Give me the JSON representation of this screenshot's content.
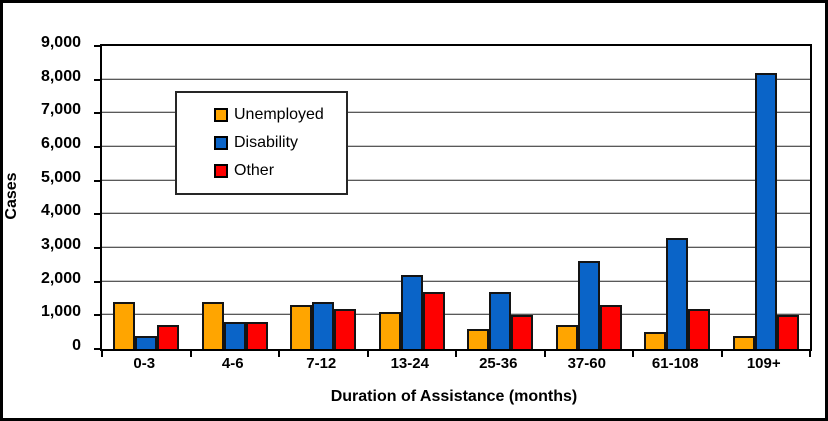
{
  "chart_data": {
    "type": "bar",
    "title": "",
    "xlabel": "Duration of Assistance (months)",
    "ylabel": "Cases",
    "categories": [
      "0-3",
      "4-6",
      "7-12",
      "13-24",
      "25-36",
      "37-60",
      "61-108",
      "109+"
    ],
    "series": [
      {
        "name": "Unemployed",
        "color": "#FFA500",
        "values": [
          1400,
          1400,
          1300,
          1100,
          600,
          700,
          500,
          400
        ]
      },
      {
        "name": "Disability",
        "color": "#0A64C8",
        "values": [
          400,
          800,
          1400,
          2200,
          1700,
          2600,
          3300,
          8200
        ]
      },
      {
        "name": "Other",
        "color": "#FE0000",
        "values": [
          700,
          800,
          1200,
          1700,
          1000,
          1300,
          1200,
          1000
        ]
      }
    ],
    "ylim": [
      0,
      9000
    ],
    "ytick_step": 1000,
    "ytick_labels": [
      "0",
      "1,000",
      "2,000",
      "3,000",
      "4,000",
      "5,000",
      "6,000",
      "7,000",
      "8,000",
      "9,000"
    ],
    "grid": true,
    "legend_position": "upper-left-inside",
    "colors": {
      "bar_border": "#141414",
      "gridline": "#595959",
      "axis": "#000000",
      "frame_border": "#000000",
      "background": "#ffffff"
    }
  }
}
